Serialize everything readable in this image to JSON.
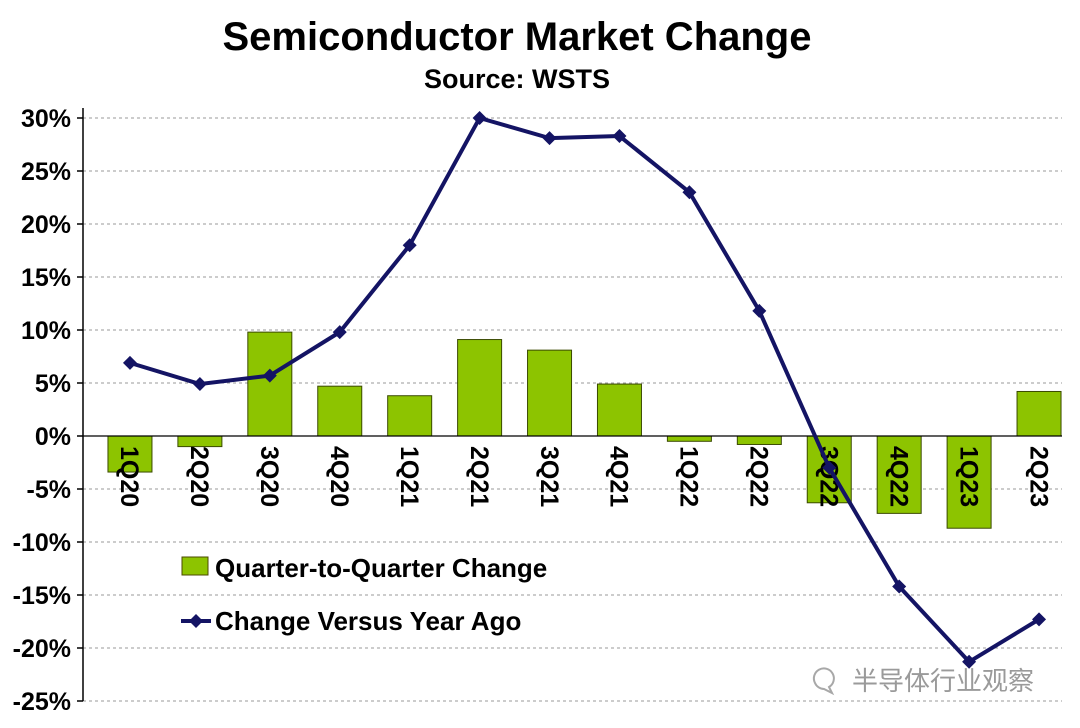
{
  "chart_data": {
    "type": "bar",
    "title": "Semiconductor Market Change",
    "subtitle": "Source: WSTS",
    "xlabel": "",
    "ylabel": "",
    "categories": [
      "1Q20",
      "2Q20",
      "3Q20",
      "4Q20",
      "1Q21",
      "2Q21",
      "3Q21",
      "4Q21",
      "1Q22",
      "2Q22",
      "3Q22",
      "4Q22",
      "1Q23",
      "2Q23"
    ],
    "series": [
      {
        "name": "Quarter-to-Quarter Change",
        "type": "bar",
        "color": "#8DC400",
        "values": [
          -3.4,
          -1.0,
          9.8,
          4.7,
          3.8,
          9.1,
          8.1,
          4.9,
          -0.5,
          -0.8,
          -6.3,
          -7.3,
          -8.7,
          4.2
        ]
      },
      {
        "name": "Change Versus Year Ago",
        "type": "line",
        "color": "#141464",
        "values": [
          6.9,
          4.9,
          5.7,
          9.8,
          18.0,
          30.0,
          28.1,
          28.3,
          23.0,
          11.8,
          -3.0,
          -14.2,
          -21.3,
          -17.3
        ]
      }
    ],
    "ylim": [
      -25,
      30
    ],
    "yticks": [
      30,
      25,
      20,
      15,
      10,
      5,
      0,
      -5,
      -10,
      -15,
      -20,
      -25
    ],
    "ytick_labels": [
      "30%",
      "25%",
      "20%",
      "15%",
      "10%",
      "5%",
      "0%",
      "-5%",
      "-10%",
      "-15%",
      "-20%",
      "-25%"
    ],
    "grid": true,
    "legend_position": "bottom-left"
  },
  "watermark": "半导体行业观察"
}
